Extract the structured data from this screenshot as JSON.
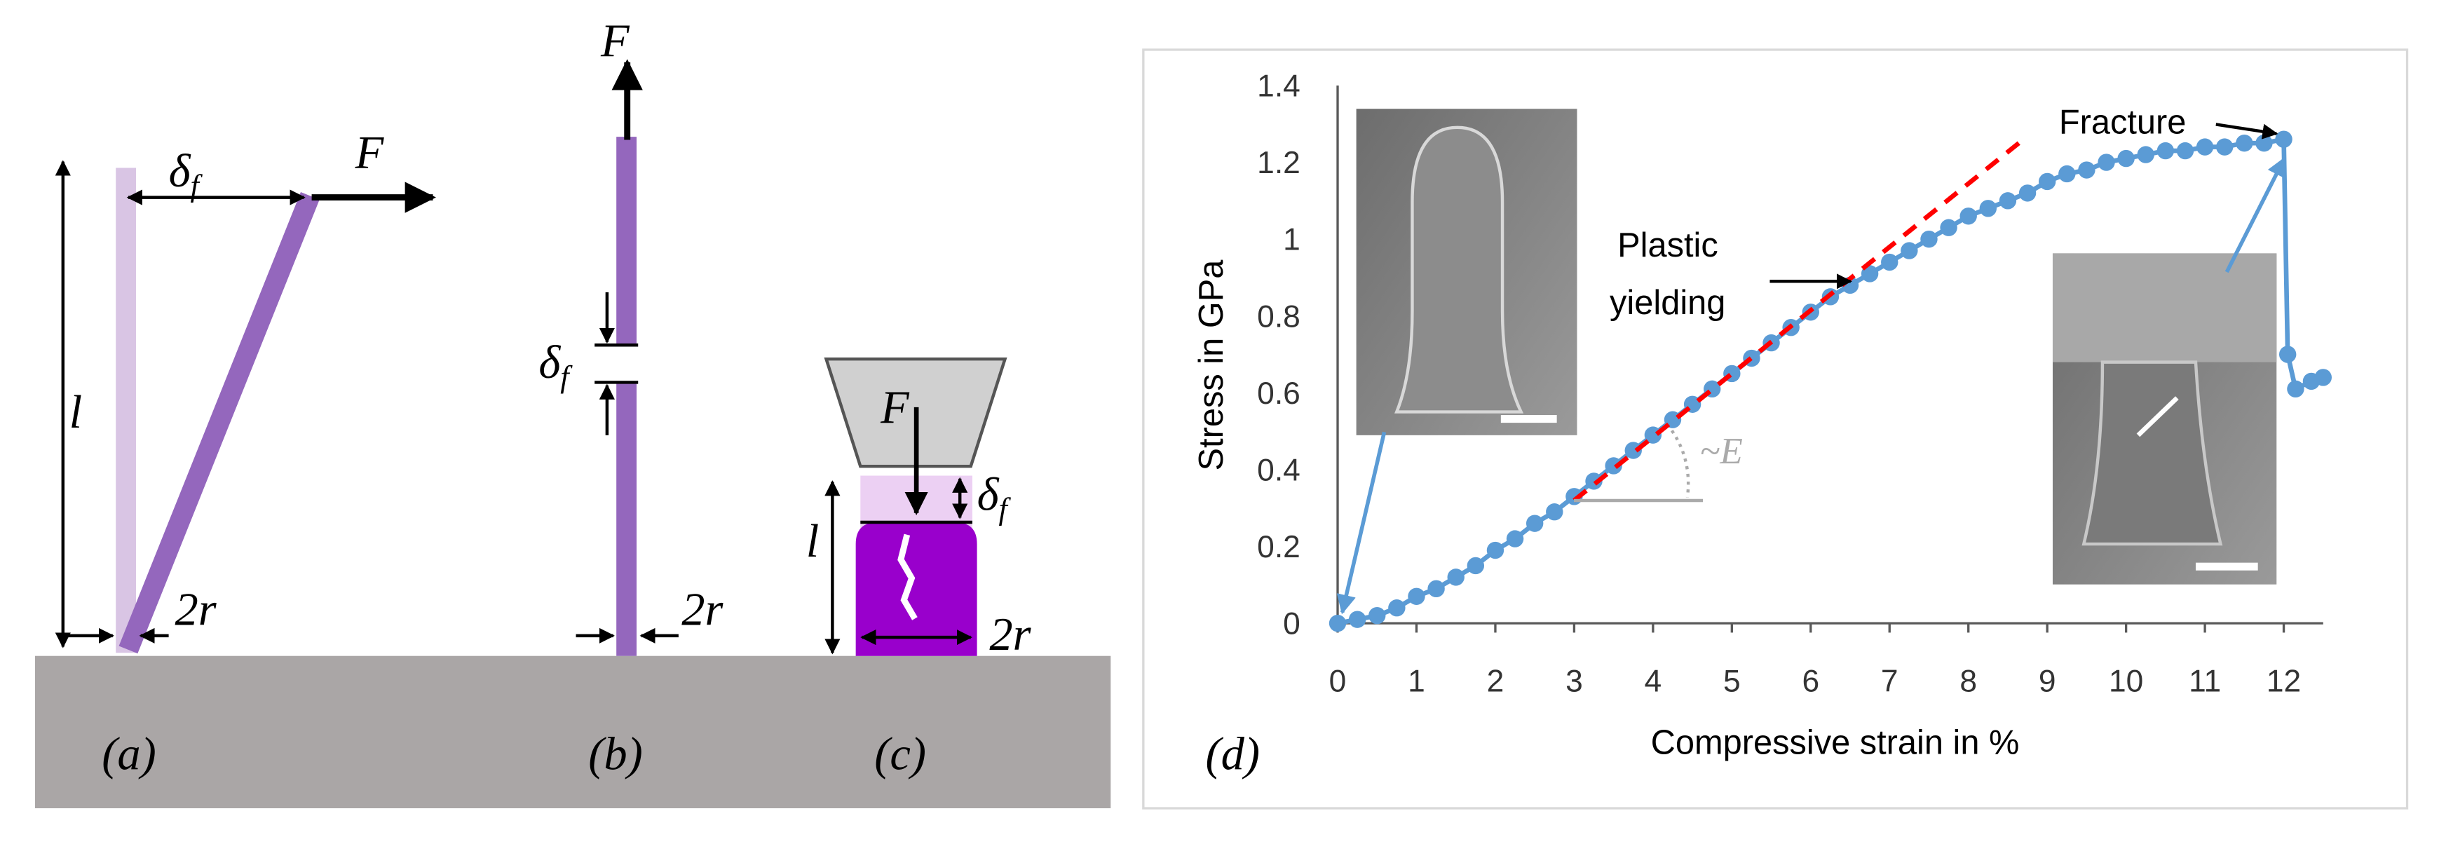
{
  "panels": {
    "a": {
      "label": "(a)",
      "force": "F",
      "deflection": {
        "symbol": "δ",
        "sub": "f"
      },
      "length": "l",
      "diameter": "2r"
    },
    "b": {
      "label": "(b)",
      "force": "F",
      "deflection": {
        "symbol": "δ",
        "sub": "f"
      },
      "diameter": "2r"
    },
    "c": {
      "label": "(c)",
      "force": "F",
      "deflection": {
        "symbol": "δ",
        "sub": "f"
      },
      "length": "l",
      "diameter": "2r"
    }
  },
  "chart_data": {
    "type": "line",
    "label": "(d)",
    "xlabel": "Compressive strain in %",
    "ylabel": "Stress in GPa",
    "xlim": [
      0,
      12.5
    ],
    "ylim": [
      0,
      1.4
    ],
    "xticks": [
      0,
      1,
      2,
      3,
      4,
      5,
      6,
      7,
      8,
      9,
      10,
      11,
      12
    ],
    "yticks": [
      0,
      0.2,
      0.4,
      0.6,
      0.8,
      1,
      1.2,
      1.4
    ],
    "grid": false,
    "series": [
      {
        "color": "#5b9bd5",
        "x": [
          0,
          0.25,
          0.5,
          0.75,
          1,
          1.25,
          1.5,
          1.75,
          2,
          2.25,
          2.5,
          2.75,
          3,
          3.25,
          3.5,
          3.75,
          4,
          4.25,
          4.5,
          4.75,
          5,
          5.25,
          5.5,
          5.75,
          6,
          6.25,
          6.5,
          6.75,
          7,
          7.25,
          7.5,
          7.75,
          8,
          8.25,
          8.5,
          8.75,
          9,
          9.25,
          9.5,
          9.75,
          10,
          10.25,
          10.5,
          10.75,
          11,
          11.25,
          11.5,
          11.75,
          12,
          12.05,
          12.15,
          12.35,
          12.5
        ],
        "values": [
          0,
          0.01,
          0.02,
          0.04,
          0.07,
          0.09,
          0.12,
          0.15,
          0.19,
          0.22,
          0.26,
          0.29,
          0.33,
          0.37,
          0.41,
          0.45,
          0.49,
          0.53,
          0.57,
          0.61,
          0.65,
          0.69,
          0.73,
          0.77,
          0.81,
          0.85,
          0.88,
          0.91,
          0.94,
          0.97,
          1.0,
          1.03,
          1.06,
          1.08,
          1.1,
          1.12,
          1.15,
          1.17,
          1.18,
          1.2,
          1.21,
          1.22,
          1.23,
          1.23,
          1.24,
          1.24,
          1.25,
          1.25,
          1.26,
          0.7,
          0.61,
          0.63,
          0.64
        ]
      },
      {
        "color": "#ff0000",
        "style": "dashed",
        "x": [
          3,
          8.7
        ],
        "values": [
          0.32,
          1.26
        ]
      }
    ],
    "annotations": [
      "Plastic",
      "yielding",
      "Fracture",
      "~E"
    ]
  }
}
